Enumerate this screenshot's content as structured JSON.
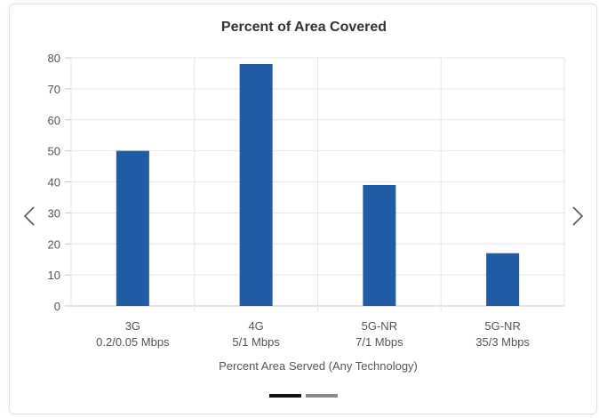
{
  "chart_data": {
    "type": "bar",
    "title": "Percent of Area Covered",
    "xlabel": "Percent Area Served (Any Technology)",
    "ylabel": "",
    "ylim": [
      0,
      80
    ],
    "yticks": [
      0,
      10,
      20,
      30,
      40,
      50,
      60,
      70,
      80
    ],
    "grid": true,
    "categories": [
      {
        "name": "3G",
        "sub": "0.2/0.05 Mbps"
      },
      {
        "name": "4G",
        "sub": "5/1 Mbps"
      },
      {
        "name": "5G-NR",
        "sub": "7/1 Mbps"
      },
      {
        "name": "5G-NR",
        "sub": "35/3 Mbps"
      }
    ],
    "values": [
      50,
      78,
      39,
      17
    ],
    "bar_color": "#215ca6"
  },
  "carousel": {
    "prev_icon": "chevron-left-icon",
    "next_icon": "chevron-right-icon",
    "active_index": 0,
    "dot_count": 2,
    "active_color": "#111111",
    "inactive_color": "#8a8a8a"
  }
}
